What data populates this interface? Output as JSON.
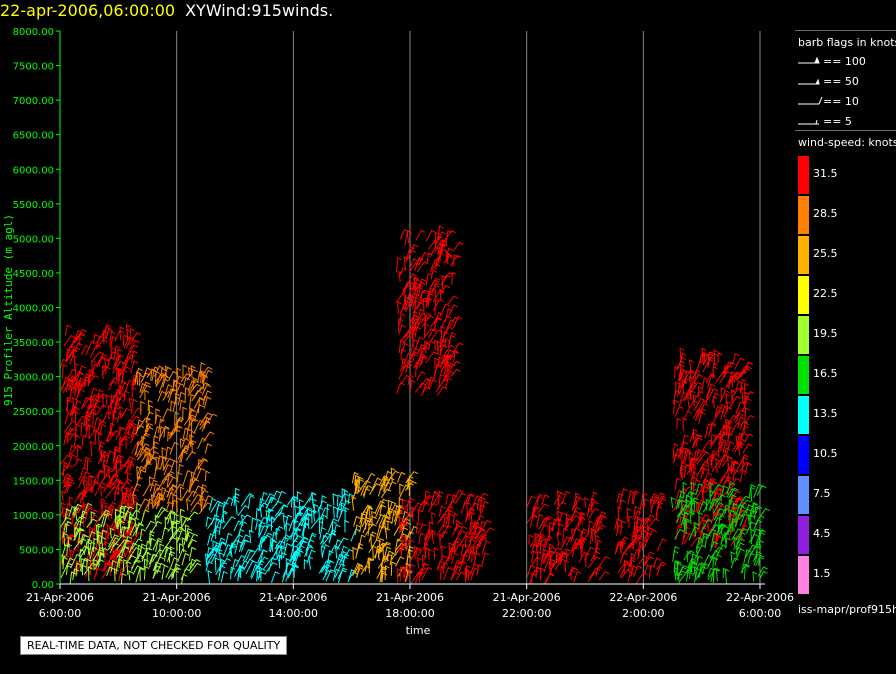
{
  "header": {
    "datetime": "22-apr-2006,06:00:00",
    "product": "XYWind:915winds."
  },
  "notice": "REAL-TIME DATA, NOT CHECKED FOR QUALITY",
  "source_path": "iss-mapr/prof915h",
  "legend_flags": {
    "title": "barb flags in knots",
    "items": [
      "== 100",
      "== 50",
      "== 10",
      "== 5"
    ]
  },
  "legend_speed": {
    "title": "wind-speed: knots",
    "bins": [
      {
        "label": "31.5",
        "color": "#ff0000"
      },
      {
        "label": "28.5",
        "color": "#ff8000"
      },
      {
        "label": "25.5",
        "color": "#ffb000"
      },
      {
        "label": "22.5",
        "color": "#ffff00"
      },
      {
        "label": "19.5",
        "color": "#a0ff30"
      },
      {
        "label": "16.5",
        "color": "#00e000"
      },
      {
        "label": "13.5",
        "color": "#00ffff"
      },
      {
        "label": "10.5",
        "color": "#0000ff"
      },
      {
        "label": "7.5",
        "color": "#6090ff"
      },
      {
        "label": "4.5",
        "color": "#9020e0"
      },
      {
        "label": "1.5",
        "color": "#ff80e0"
      }
    ]
  },
  "chart_data": {
    "type": "scatter",
    "xlabel": "time",
    "ylabel": "915 Profiler Altitude (m agl)",
    "ylim": [
      0,
      8000
    ],
    "xlim_hours": [
      0,
      24
    ],
    "yticks": [
      "0.00",
      "500.00",
      "1000.00",
      "1500.00",
      "2000.00",
      "2500.00",
      "3000.00",
      "3500.00",
      "4000.00",
      "4500.00",
      "5000.00",
      "5500.00",
      "6000.00",
      "6500.00",
      "7000.00",
      "7500.00",
      "8000.00"
    ],
    "xticks": [
      {
        "date": "21-Apr-2006",
        "time": "6:00:00"
      },
      {
        "date": "21-Apr-2006",
        "time": "10:00:00"
      },
      {
        "date": "21-Apr-2006",
        "time": "14:00:00"
      },
      {
        "date": "21-Apr-2006",
        "time": "18:00:00"
      },
      {
        "date": "21-Apr-2006",
        "time": "22:00:00"
      },
      {
        "date": "22-Apr-2006",
        "time": "2:00:00"
      },
      {
        "date": "22-Apr-2006",
        "time": "6:00:00"
      }
    ],
    "grid": "vertical",
    "series": [
      {
        "hours": [
          0,
          2.5
        ],
        "alt": [
          0,
          3600
        ],
        "speed": 31.5
      },
      {
        "hours": [
          0,
          4.5
        ],
        "alt": [
          0,
          1000
        ],
        "speed": 19.5
      },
      {
        "hours": [
          2.5,
          5
        ],
        "alt": [
          1000,
          3000
        ],
        "speed": 28.5
      },
      {
        "hours": [
          5,
          10
        ],
        "alt": [
          0,
          1200
        ],
        "speed": 13.5
      },
      {
        "hours": [
          10,
          12
        ],
        "alt": [
          0,
          1500
        ],
        "speed": 25.5
      },
      {
        "hours": [
          11.5,
          14.5
        ],
        "alt": [
          0,
          1200
        ],
        "speed": 31.5
      },
      {
        "hours": [
          11.5,
          13.5
        ],
        "alt": [
          2700,
          5000
        ],
        "speed": 31.5
      },
      {
        "hours": [
          16,
          18.5
        ],
        "alt": [
          0,
          1200
        ],
        "speed": 31.5
      },
      {
        "hours": [
          19,
          20.5
        ],
        "alt": [
          0,
          1200
        ],
        "speed": 31.5
      },
      {
        "hours": [
          21,
          23.5
        ],
        "alt": [
          500,
          3200
        ],
        "speed": 31.5
      },
      {
        "hours": [
          21,
          24
        ],
        "alt": [
          0,
          1300
        ],
        "speed": 16.5
      }
    ]
  }
}
